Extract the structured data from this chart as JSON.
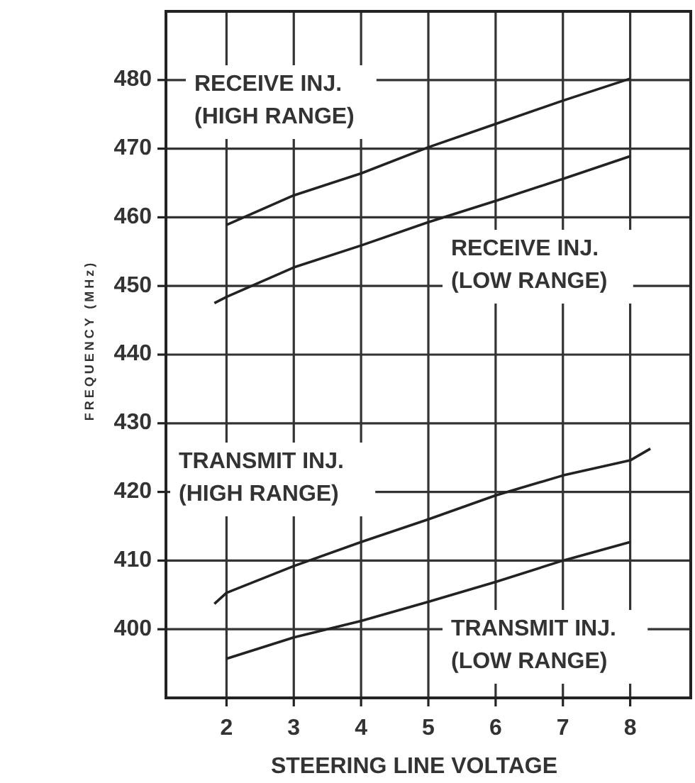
{
  "chart_data": {
    "type": "line",
    "xlabel": "STEERING LINE VOLTAGE",
    "ylabel": "FREQUENCY (MHz)",
    "xlim": [
      1.1,
      8.9
    ],
    "ylim": [
      390,
      490
    ],
    "xticks": [
      2,
      3,
      4,
      5,
      6,
      7,
      8
    ],
    "yticks": [
      400,
      410,
      420,
      430,
      440,
      450,
      460,
      470,
      480
    ],
    "grid": true,
    "marker": "none",
    "line_style": "solid",
    "tick_labels": true,
    "series": [
      {
        "name": "RECEIVE INJ. (HIGH RANGE)",
        "color": "#222222",
        "x": [
          2,
          3,
          4,
          5,
          6,
          7,
          8
        ],
        "values": [
          458.9,
          463.2,
          466.4,
          470.2,
          473.6,
          477,
          480.2
        ]
      },
      {
        "name": "RECEIVE INJ. (LOW RANGE)",
        "color": "#222222",
        "x": [
          1.82,
          2,
          3,
          4,
          5,
          6,
          7,
          8
        ],
        "values": [
          447.5,
          448.4,
          452.7,
          455.9,
          459.3,
          462.4,
          465.6,
          468.9
        ]
      },
      {
        "name": "TRANSMIT INJ. (HIGH RANGE)",
        "color": "#222222",
        "x": [
          1.82,
          2,
          3,
          4,
          5,
          6,
          7,
          8,
          8.3
        ],
        "values": [
          403.7,
          405.3,
          409.2,
          412.7,
          416,
          419.5,
          422.4,
          424.6,
          426.3
        ]
      },
      {
        "name": "TRANSMIT INJ. (LOW RANGE)",
        "color": "#222222",
        "x": [
          2,
          3,
          4,
          5,
          6,
          7,
          8
        ],
        "values": [
          395.7,
          398.8,
          401.2,
          404,
          406.9,
          410,
          412.7
        ]
      }
    ]
  }
}
